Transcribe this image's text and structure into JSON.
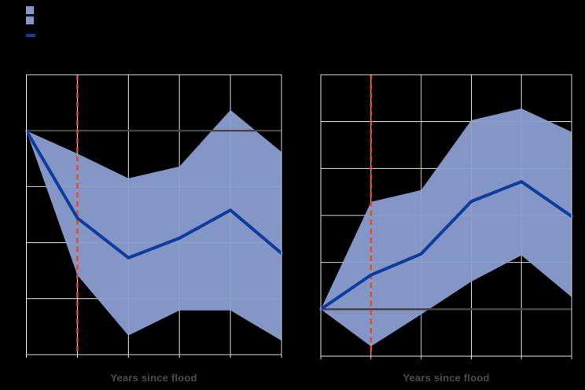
{
  "colors": {
    "background": "#000000",
    "grid": "#DCDCDC",
    "band": "#8B9FD1",
    "estimate_line": "#0D3B9E",
    "event_line": "#E8491F",
    "zero_line": "#454545",
    "axis_label": "#4D4D4D",
    "legend_band_swatch": "#8099CC",
    "legend_line_swatch": "#0D3B9E"
  },
  "legend": {
    "items": [
      {
        "name": "band-swatch-1",
        "type": "square",
        "color": "#8099CC",
        "label": ""
      },
      {
        "name": "band-swatch-2",
        "type": "square",
        "color": "#8099CC",
        "label": ""
      },
      {
        "name": "estimate-line-swatch",
        "type": "line",
        "color": "#0D3B9E",
        "label": ""
      }
    ]
  },
  "chart_data": [
    {
      "type": "line",
      "panel": "left",
      "xlabel": "Years since flood",
      "x": [
        0,
        1,
        2,
        3,
        4,
        5
      ],
      "series": [
        {
          "name": "estimate",
          "values": [
            0,
            -1.56,
            -2.27,
            -1.92,
            -1.42,
            -2.19
          ]
        },
        {
          "name": "ci_upper",
          "values": [
            0,
            -0.41,
            -0.85,
            -0.64,
            0.37,
            -0.38
          ]
        },
        {
          "name": "ci_lower",
          "values": [
            0,
            -2.58,
            -3.66,
            -3.21,
            -3.21,
            -3.75
          ]
        }
      ],
      "event_line_x": 1,
      "baseline_y": 0,
      "xlim": [
        0,
        5
      ],
      "ylim": [
        -4,
        1
      ],
      "grid": true,
      "y_units": "gridline units relative to zero line (tick labels not visible in image)"
    },
    {
      "type": "line",
      "panel": "right",
      "xlabel": "Years since flood",
      "x": [
        0,
        1,
        2,
        3,
        4,
        5
      ],
      "series": [
        {
          "name": "estimate",
          "values": [
            0,
            0.73,
            1.18,
            2.3,
            2.72,
            1.98
          ]
        },
        {
          "name": "ci_upper",
          "values": [
            0,
            2.29,
            2.54,
            4.03,
            4.28,
            3.78
          ]
        },
        {
          "name": "ci_lower",
          "values": [
            0,
            -0.79,
            -0.11,
            0.59,
            1.15,
            0.26
          ]
        }
      ],
      "event_line_x": 1,
      "baseline_y": 0,
      "xlim": [
        0,
        5
      ],
      "ylim": [
        -1,
        5
      ],
      "grid": true,
      "y_units": "gridline units relative to zero line (tick labels not visible in image)"
    }
  ]
}
